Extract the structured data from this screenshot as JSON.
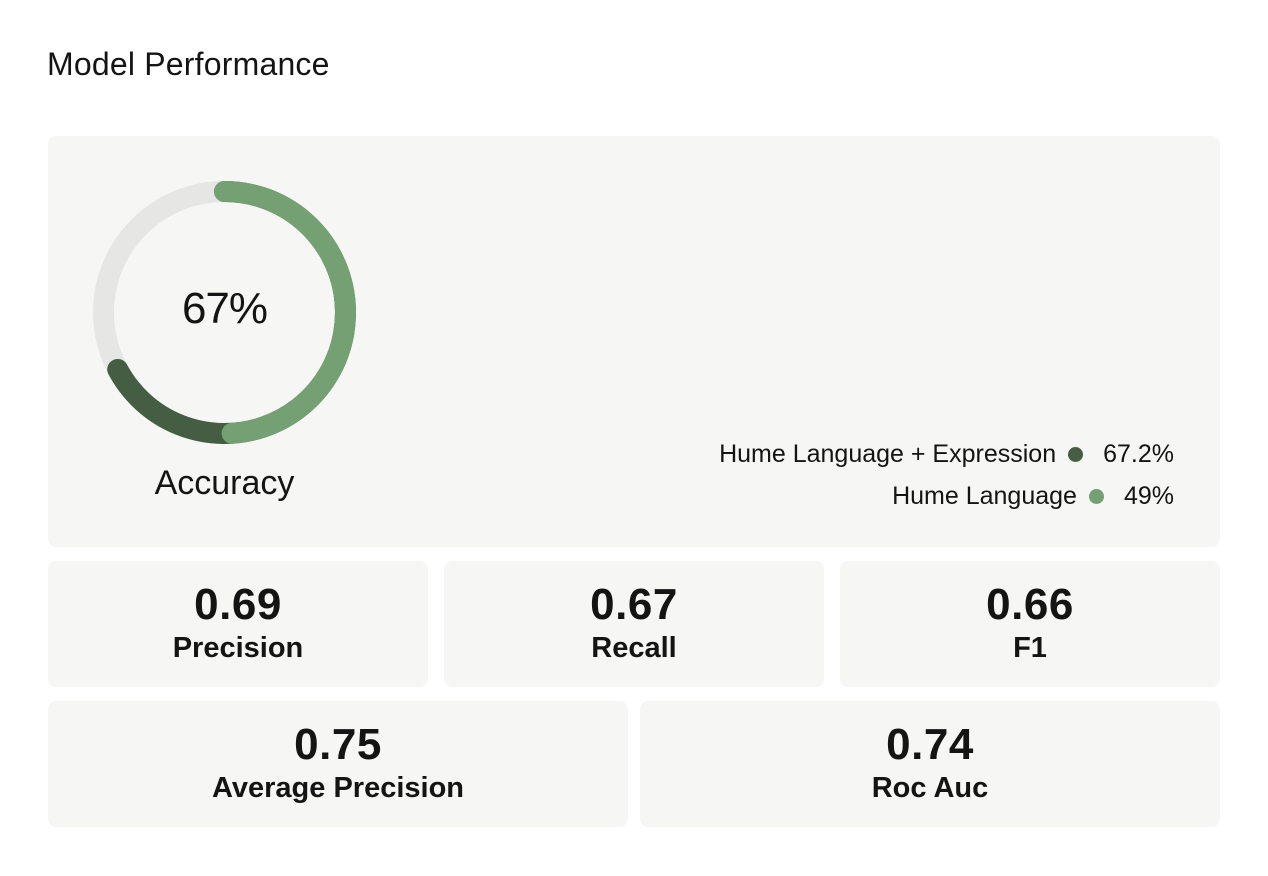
{
  "title": "Model Performance",
  "accuracy": {
    "value_text": "67%",
    "label": "Accuracy",
    "track_color": "#e6e6e4",
    "series": [
      {
        "name": "Hume Language + Expression",
        "value_text": "67.2%",
        "value": 0.672,
        "color": "#455e43"
      },
      {
        "name": "Hume Language",
        "value_text": "49%",
        "value": 0.49,
        "color": "#74a073"
      }
    ]
  },
  "metrics": [
    {
      "value": "0.69",
      "label": "Precision"
    },
    {
      "value": "0.67",
      "label": "Recall"
    },
    {
      "value": "0.66",
      "label": "F1"
    },
    {
      "value": "0.75",
      "label": "Average Precision"
    },
    {
      "value": "0.74",
      "label": "Roc Auc"
    }
  ]
}
